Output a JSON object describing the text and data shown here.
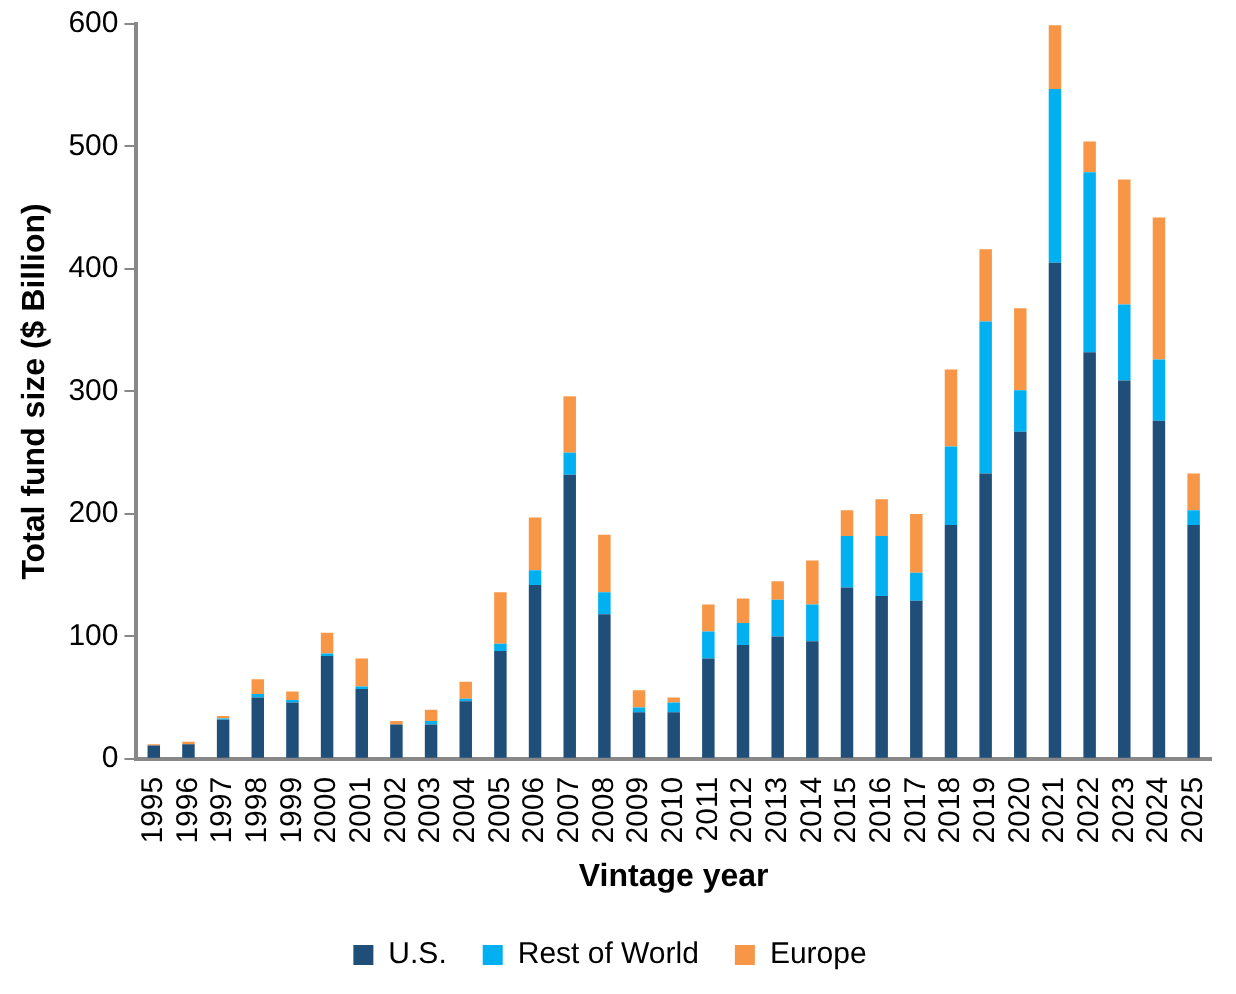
{
  "chart_data": {
    "type": "bar",
    "stacked": true,
    "xlabel": "Vintage year",
    "ylabel": "Total fund size ($ Billion)",
    "categories": [
      "1995",
      "1996",
      "1997",
      "1998",
      "1999",
      "2000",
      "2001",
      "2002",
      "2003",
      "2004",
      "2005",
      "2006",
      "2007",
      "2008",
      "2009",
      "2010",
      "2011",
      "2012",
      "2013",
      "2014",
      "2015",
      "2016",
      "2017",
      "2018",
      "2019",
      "2020",
      "2021",
      "2022",
      "2023",
      "2024",
      "2025"
    ],
    "series": [
      {
        "name": "U.S.",
        "color": "#1f4e79",
        "values": [
          11,
          12,
          32,
          50,
          46,
          84,
          57,
          28,
          28,
          47,
          88,
          142,
          232,
          118,
          38,
          38,
          82,
          93,
          100,
          96,
          140,
          133,
          129,
          191,
          233,
          267,
          405,
          332,
          309,
          276,
          191
        ]
      },
      {
        "name": "Rest of World",
        "color": "#00b0f0",
        "values": [
          0,
          0,
          1,
          3,
          2,
          2,
          2,
          0,
          3,
          2,
          6,
          12,
          18,
          18,
          4,
          8,
          22,
          18,
          30,
          30,
          42,
          49,
          23,
          64,
          124,
          34,
          142,
          147,
          62,
          50,
          12
        ]
      },
      {
        "name": "Europe",
        "color": "#f79646",
        "values": [
          1,
          2,
          2,
          12,
          7,
          17,
          23,
          3,
          9,
          14,
          42,
          43,
          46,
          47,
          14,
          4,
          22,
          20,
          15,
          36,
          21,
          30,
          48,
          63,
          59,
          67,
          52,
          25,
          102,
          116,
          30
        ]
      }
    ],
    "ylim": [
      0,
      600
    ],
    "yticks": [
      0,
      100,
      200,
      300,
      400,
      500,
      600
    ],
    "grid": false,
    "legend": "bottom"
  }
}
